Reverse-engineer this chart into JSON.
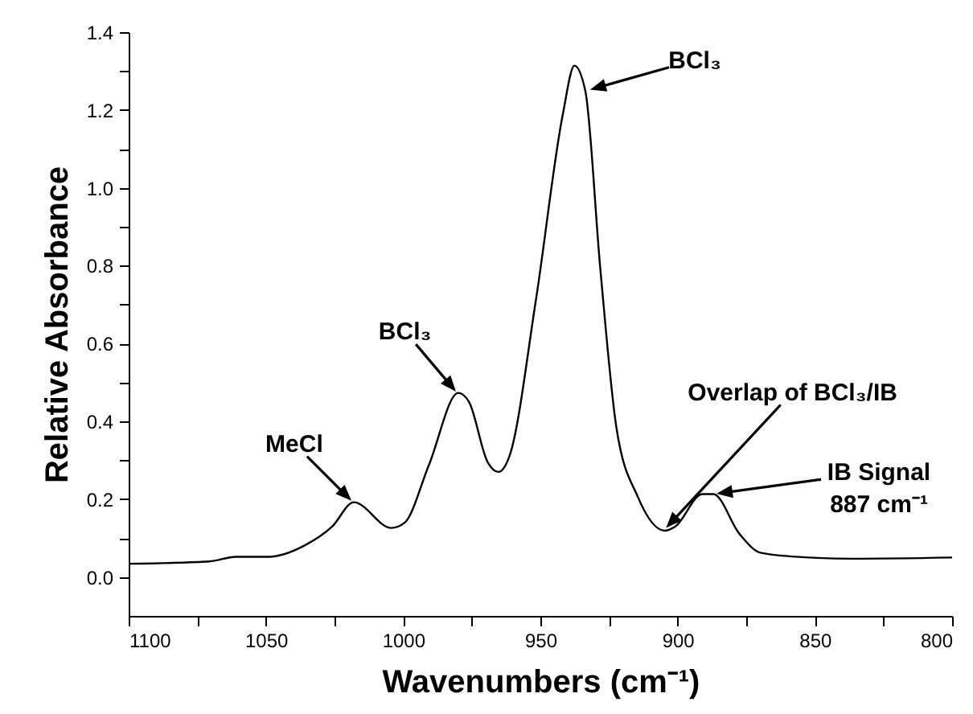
{
  "chart_data": {
    "type": "line",
    "xlabel": "Wavenumbers (cm⁻¹)",
    "ylabel": "Relative Absorbance",
    "x": [
      1100,
      1070.7,
      1060.9,
      1049,
      1035.6,
      1025.8,
      1018,
      1004.3,
      999.4,
      990.6,
      979.9,
      976,
      969.2,
      965.3,
      961.3,
      951.6,
      941.8,
      937.6,
      933.6,
      928.2,
      922.3,
      914.5,
      904.7,
      900.8,
      891,
      887,
      877.4,
      869.6,
      852,
      836.4,
      800
    ],
    "series": [
      {
        "color": "#000000",
        "values": [
          0.034,
          0.04,
          0.052,
          0.052,
          0.082,
          0.13,
          0.192,
          0.126,
          0.14,
          0.288,
          0.473,
          0.45,
          0.295,
          0.27,
          0.31,
          0.713,
          1.19,
          1.314,
          1.248,
          0.795,
          0.384,
          0.206,
          0.119,
          0.13,
          0.213,
          0.213,
          0.11,
          0.062,
          0.05,
          0.047,
          0.05
        ]
      }
    ],
    "xlim": [
      1100,
      800
    ],
    "ylim": [
      -0.1,
      1.4
    ],
    "xticks": [
      1100,
      {
        "value": 1075,
        "label": null
      },
      1050,
      {
        "value": 1025,
        "label": null
      },
      1000,
      {
        "value": 975,
        "label": null
      },
      950,
      {
        "value": 925,
        "label": null
      },
      900,
      {
        "value": 875,
        "label": null
      },
      850,
      {
        "value": 825,
        "label": null
      },
      800
    ],
    "yticks": [
      {
        "value": 0,
        "label": "0.0"
      },
      {
        "value": 0.1,
        "label": null
      },
      {
        "value": 0.2,
        "label": "0.2"
      },
      {
        "value": 0.3,
        "label": null
      },
      {
        "value": 0.4,
        "label": "0.4"
      },
      {
        "value": 0.5,
        "label": null
      },
      {
        "value": 0.6,
        "label": "0.6"
      },
      {
        "value": 0.7,
        "label": null
      },
      {
        "value": 0.8,
        "label": "0.8"
      },
      {
        "value": 0.9,
        "label": null
      },
      {
        "value": 1,
        "label": "1.0"
      },
      {
        "value": 1.1,
        "label": null
      },
      {
        "value": 1.2,
        "label": "1.2"
      },
      {
        "value": 1.3,
        "label": null
      },
      {
        "value": 1.4,
        "label": "1.4"
      }
    ],
    "grid": false,
    "marker": "none",
    "line_style": "solid",
    "annotations": [
      {
        "text": "MeCl",
        "x": 1018,
        "y": 0.19
      },
      {
        "text": "BCl₃",
        "x": 980,
        "y": 0.47
      },
      {
        "text": "BCl₃",
        "x": 933,
        "y": 1.25
      },
      {
        "text": "Overlap of BCl₃/IB",
        "x": 905,
        "y": 0.12
      },
      {
        "text": "IB Signal\n887 cm⁻¹",
        "x": 887,
        "y": 0.213
      }
    ]
  }
}
